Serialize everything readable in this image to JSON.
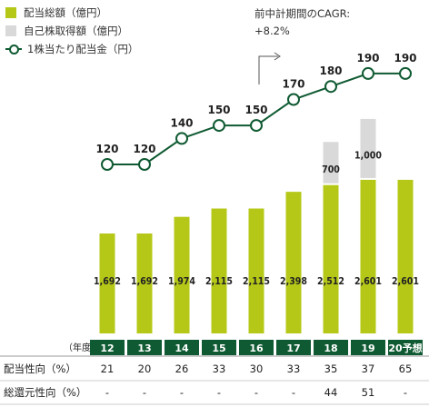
{
  "legend": {
    "total_dividend": "配当総額（億円）",
    "buyback": "自己株取得額（億円）",
    "dps": "1株当たり配当金（円）"
  },
  "annotation": {
    "line1": "前中計期間のCAGR:",
    "line2": "+8.2%"
  },
  "year_unit": "（年度）",
  "rows": [
    {
      "label": "配当性向（%）",
      "values": [
        "21",
        "20",
        "26",
        "33",
        "30",
        "33",
        "35",
        "37",
        "65"
      ]
    },
    {
      "label": "総還元性向（%）",
      "values": [
        "-",
        "-",
        "-",
        "-",
        "-",
        "-",
        "44",
        "51",
        "-"
      ]
    }
  ],
  "colors": {
    "dividend_bar": "#b5c817",
    "buyback_bar": "#d9d9d9",
    "line": "#0f5a32",
    "year_box": "#0f5a32"
  },
  "chart_data": {
    "type": "bar",
    "categories": [
      "12",
      "13",
      "14",
      "15",
      "16",
      "17",
      "18",
      "19",
      "20予想"
    ],
    "series": [
      {
        "name": "配当総額（億円）",
        "values": [
          1692,
          1692,
          1974,
          2115,
          2115,
          2398,
          2512,
          2601,
          2601
        ],
        "labels": [
          "1,692",
          "1,692",
          "1,974",
          "2,115",
          "2,115",
          "2,398",
          "2,512",
          "2,601",
          "2,601"
        ]
      },
      {
        "name": "自己株取得額（億円）",
        "values": [
          0,
          0,
          0,
          0,
          0,
          0,
          700,
          1000,
          0
        ],
        "labels": [
          "",
          "",
          "",
          "",
          "",
          "",
          "700",
          "1,000",
          ""
        ]
      },
      {
        "name": "1株当たり配当金（円）",
        "type": "line",
        "values": [
          120,
          120,
          140,
          150,
          150,
          170,
          180,
          190,
          190
        ]
      }
    ]
  }
}
